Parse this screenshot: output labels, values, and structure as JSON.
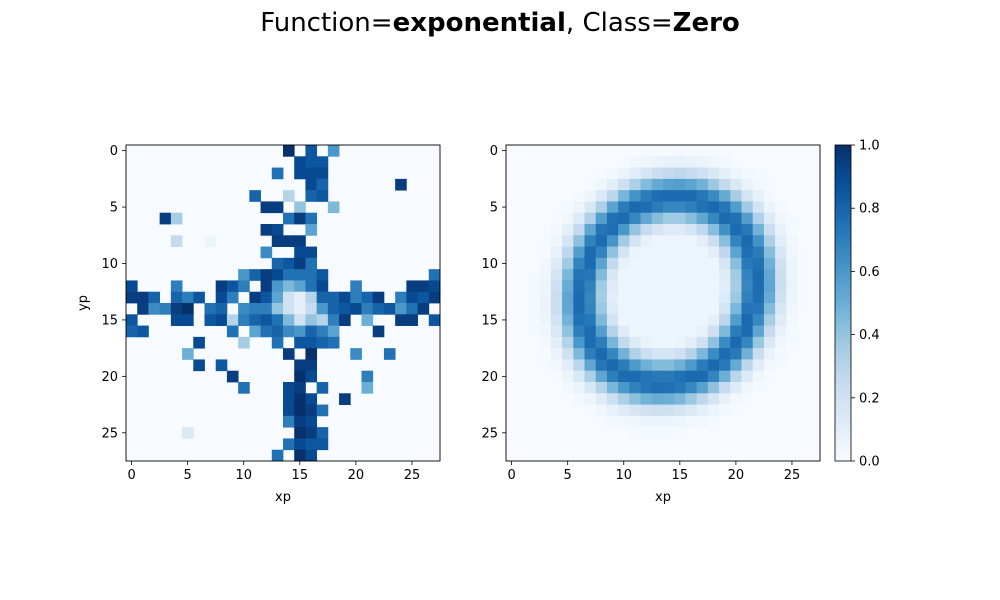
{
  "title": {
    "prefix1": "Function=",
    "value1": "exponential",
    "sep": ", ",
    "prefix2": "Class=",
    "value2": "Zero"
  },
  "chart_data": [
    {
      "type": "heatmap",
      "title": "",
      "xlabel": "xp",
      "ylabel": "yp",
      "grid_shape": [
        28,
        28
      ],
      "x_ticks": [
        "0",
        "5",
        "10",
        "15",
        "20",
        "25"
      ],
      "y_ticks": [
        "0",
        "5",
        "10",
        "15",
        "20",
        "25"
      ],
      "colormap": "Blues",
      "vrange": [
        0,
        1
      ],
      "cells": [
        [
          0,
          14,
          1.0
        ],
        [
          0,
          16,
          0.85
        ],
        [
          0,
          18,
          0.6
        ],
        [
          1,
          15,
          0.9
        ],
        [
          1,
          16,
          0.85
        ],
        [
          1,
          17,
          0.85
        ],
        [
          2,
          13,
          0.75
        ],
        [
          2,
          15,
          0.9
        ],
        [
          2,
          16,
          0.9
        ],
        [
          2,
          17,
          0.9
        ],
        [
          3,
          16,
          0.9
        ],
        [
          3,
          17,
          0.8
        ],
        [
          3,
          24,
          0.95
        ],
        [
          4,
          11,
          0.8
        ],
        [
          4,
          14,
          0.3
        ],
        [
          4,
          16,
          0.8
        ],
        [
          4,
          17,
          0.85
        ],
        [
          5,
          12,
          0.95
        ],
        [
          5,
          13,
          0.95
        ],
        [
          5,
          15,
          0.4
        ],
        [
          5,
          18,
          0.45
        ],
        [
          6,
          3,
          0.95
        ],
        [
          6,
          4,
          0.35
        ],
        [
          6,
          14,
          0.75
        ],
        [
          6,
          15,
          0.95
        ],
        [
          6,
          16,
          0.75
        ],
        [
          7,
          12,
          0.95
        ],
        [
          7,
          13,
          0.9
        ],
        [
          7,
          16,
          0.55
        ],
        [
          8,
          4,
          0.25
        ],
        [
          8,
          7,
          0.05
        ],
        [
          8,
          13,
          0.95
        ],
        [
          8,
          14,
          0.95
        ],
        [
          8,
          15,
          0.95
        ],
        [
          9,
          12,
          0.65
        ],
        [
          9,
          15,
          0.9
        ],
        [
          9,
          16,
          0.9
        ],
        [
          10,
          13,
          0.8
        ],
        [
          10,
          14,
          0.85
        ],
        [
          10,
          15,
          0.95
        ],
        [
          10,
          16,
          0.75
        ],
        [
          11,
          10,
          0.6
        ],
        [
          11,
          11,
          0.8
        ],
        [
          11,
          12,
          0.95
        ],
        [
          11,
          13,
          0.9
        ],
        [
          11,
          14,
          0.75
        ],
        [
          11,
          15,
          0.75
        ],
        [
          11,
          16,
          0.75
        ],
        [
          11,
          17,
          0.85
        ],
        [
          11,
          27,
          0.75
        ],
        [
          12,
          0,
          0.9
        ],
        [
          12,
          4,
          0.7
        ],
        [
          12,
          8,
          0.95
        ],
        [
          12,
          9,
          0.85
        ],
        [
          12,
          10,
          0.7
        ],
        [
          12,
          12,
          0.95
        ],
        [
          12,
          13,
          0.6
        ],
        [
          12,
          14,
          0.45
        ],
        [
          12,
          15,
          0.55
        ],
        [
          12,
          16,
          0.75
        ],
        [
          12,
          17,
          0.9
        ],
        [
          12,
          20,
          0.7
        ],
        [
          12,
          25,
          0.95
        ],
        [
          12,
          26,
          0.95
        ],
        [
          12,
          27,
          0.9
        ],
        [
          13,
          0,
          0.95
        ],
        [
          13,
          1,
          0.95
        ],
        [
          13,
          2,
          0.8
        ],
        [
          13,
          4,
          0.8
        ],
        [
          13,
          5,
          0.7
        ],
        [
          13,
          6,
          0.85
        ],
        [
          13,
          8,
          0.9
        ],
        [
          13,
          9,
          0.7
        ],
        [
          13,
          11,
          0.95
        ],
        [
          13,
          12,
          0.85
        ],
        [
          13,
          13,
          0.55
        ],
        [
          13,
          14,
          0.2
        ],
        [
          13,
          15,
          0.1
        ],
        [
          13,
          16,
          0.3
        ],
        [
          13,
          17,
          0.8
        ],
        [
          13,
          18,
          0.8
        ],
        [
          13,
          19,
          0.9
        ],
        [
          13,
          20,
          0.7
        ],
        [
          13,
          21,
          0.8
        ],
        [
          13,
          22,
          0.95
        ],
        [
          13,
          24,
          0.7
        ],
        [
          13,
          25,
          0.9
        ],
        [
          13,
          26,
          0.85
        ],
        [
          13,
          27,
          0.95
        ],
        [
          14,
          1,
          0.95
        ],
        [
          14,
          2,
          0.65
        ],
        [
          14,
          3,
          0.7
        ],
        [
          14,
          4,
          0.95
        ],
        [
          14,
          5,
          1.0
        ],
        [
          14,
          7,
          0.75
        ],
        [
          14,
          8,
          0.8
        ],
        [
          14,
          10,
          0.65
        ],
        [
          14,
          11,
          0.7
        ],
        [
          14,
          12,
          0.7
        ],
        [
          14,
          13,
          0.4
        ],
        [
          14,
          14,
          0.2
        ],
        [
          14,
          15,
          0.1
        ],
        [
          14,
          16,
          0.25
        ],
        [
          14,
          17,
          0.6
        ],
        [
          14,
          18,
          0.8
        ],
        [
          14,
          19,
          0.85
        ],
        [
          14,
          20,
          0.9
        ],
        [
          14,
          21,
          0.7
        ],
        [
          14,
          22,
          0.8
        ],
        [
          14,
          23,
          0.85
        ],
        [
          14,
          24,
          0.6
        ],
        [
          14,
          25,
          0.75
        ],
        [
          14,
          26,
          0.95
        ],
        [
          15,
          0,
          0.85
        ],
        [
          15,
          4,
          0.9
        ],
        [
          15,
          5,
          0.9
        ],
        [
          15,
          7,
          0.85
        ],
        [
          15,
          8,
          0.9
        ],
        [
          15,
          9,
          0.3
        ],
        [
          15,
          10,
          0.7
        ],
        [
          15,
          11,
          0.8
        ],
        [
          15,
          12,
          0.85
        ],
        [
          15,
          13,
          0.75
        ],
        [
          15,
          14,
          0.45
        ],
        [
          15,
          15,
          0.2
        ],
        [
          15,
          16,
          0.4
        ],
        [
          15,
          17,
          0.3
        ],
        [
          15,
          18,
          0.7
        ],
        [
          15,
          19,
          0.95
        ],
        [
          15,
          21,
          0.5
        ],
        [
          15,
          24,
          0.95
        ],
        [
          15,
          25,
          0.95
        ],
        [
          15,
          27,
          0.85
        ],
        [
          16,
          0,
          0.8
        ],
        [
          16,
          1,
          0.85
        ],
        [
          16,
          9,
          0.75
        ],
        [
          16,
          11,
          0.55
        ],
        [
          16,
          12,
          0.75
        ],
        [
          16,
          13,
          0.8
        ],
        [
          16,
          14,
          0.65
        ],
        [
          16,
          15,
          0.6
        ],
        [
          16,
          16,
          0.8
        ],
        [
          16,
          17,
          0.7
        ],
        [
          16,
          18,
          0.55
        ],
        [
          16,
          22,
          0.95
        ],
        [
          17,
          6,
          0.9
        ],
        [
          17,
          10,
          0.35
        ],
        [
          17,
          13,
          0.75
        ],
        [
          17,
          15,
          0.85
        ],
        [
          17,
          16,
          0.85
        ],
        [
          17,
          17,
          0.8
        ],
        [
          17,
          18,
          0.75
        ],
        [
          18,
          5,
          0.5
        ],
        [
          18,
          14,
          0.95
        ],
        [
          18,
          16,
          1.0
        ],
        [
          18,
          20,
          0.65
        ],
        [
          18,
          23,
          0.75
        ],
        [
          19,
          6,
          0.9
        ],
        [
          19,
          8,
          0.85
        ],
        [
          19,
          15,
          0.95
        ],
        [
          19,
          16,
          0.95
        ],
        [
          20,
          9,
          0.95
        ],
        [
          20,
          15,
          1.0
        ],
        [
          20,
          16,
          0.9
        ],
        [
          20,
          21,
          0.7
        ],
        [
          21,
          10,
          0.75
        ],
        [
          21,
          14,
          0.9
        ],
        [
          21,
          15,
          0.95
        ],
        [
          21,
          17,
          0.8
        ],
        [
          21,
          21,
          0.5
        ],
        [
          22,
          14,
          0.9
        ],
        [
          22,
          15,
          1.0
        ],
        [
          22,
          16,
          0.9
        ],
        [
          22,
          19,
          0.95
        ],
        [
          23,
          14,
          0.9
        ],
        [
          23,
          15,
          1.0
        ],
        [
          23,
          16,
          0.95
        ],
        [
          23,
          17,
          0.75
        ],
        [
          24,
          14,
          0.7
        ],
        [
          24,
          15,
          0.95
        ],
        [
          24,
          16,
          0.9
        ],
        [
          25,
          5,
          0.15
        ],
        [
          25,
          15,
          1.0
        ],
        [
          25,
          16,
          0.95
        ],
        [
          25,
          17,
          0.8
        ],
        [
          26,
          14,
          0.75
        ],
        [
          26,
          15,
          0.9
        ],
        [
          26,
          16,
          0.85
        ],
        [
          26,
          17,
          0.85
        ],
        [
          27,
          13,
          0.75
        ],
        [
          27,
          15,
          1.0
        ],
        [
          27,
          16,
          0.9
        ]
      ]
    },
    {
      "type": "heatmap",
      "title": "",
      "xlabel": "xp",
      "ylabel": "",
      "grid_shape": [
        28,
        28
      ],
      "x_ticks": [
        "0",
        "5",
        "10",
        "15",
        "20",
        "25"
      ],
      "y_ticks": [
        "0",
        "5",
        "10",
        "15",
        "20",
        "25"
      ],
      "colormap": "Blues",
      "vrange": [
        0,
        1
      ],
      "ring": {
        "center_col": 14.0,
        "center_row": 12.4,
        "radius_x": 7.6,
        "radius_y": 8.4,
        "rotation_deg": 28,
        "thickness": 1.45,
        "peak": 0.78,
        "inner_fill": 0.05
      }
    }
  ],
  "colorbar": {
    "range": [
      0,
      1
    ],
    "ticks": [
      "0.0",
      "0.2",
      "0.4",
      "0.6",
      "0.8",
      "1.0"
    ]
  }
}
